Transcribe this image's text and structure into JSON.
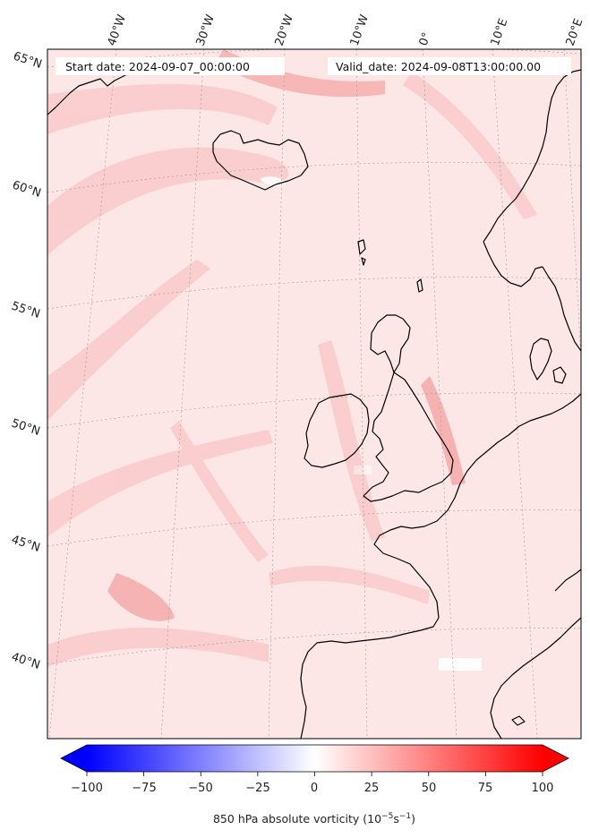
{
  "header": {
    "start_date": "Start date: 2024-09-07_00:00:00",
    "valid_date": "Valid_date: 2024-09-08T13:00:00.00"
  },
  "longitude_labels": [
    "40°W",
    "30°W",
    "20°W",
    "10°W",
    "0°",
    "10°E",
    "20°E"
  ],
  "latitude_labels": [
    "65°N",
    "60°N",
    "55°N",
    "50°N",
    "45°N",
    "40°N"
  ],
  "colorbar": {
    "ticks": [
      "−100",
      "−75",
      "−50",
      "−25",
      "0",
      "25",
      "50",
      "75",
      "100"
    ],
    "title": "850 hPa absolute vorticity (10",
    "title_exp1": "−5",
    "title_mid": "s",
    "title_exp2": "−1",
    "title_end": ")",
    "vmin": -100,
    "vmax": 100,
    "extend": "both",
    "cmap": "bwr"
  },
  "colors": {
    "coastline": "#000000",
    "background_field": "#fde3e3",
    "gridline": "#9a9a9a",
    "cmap_low": "#0000ff",
    "cmap_mid": "#ffffff",
    "cmap_high": "#ff0000"
  }
}
